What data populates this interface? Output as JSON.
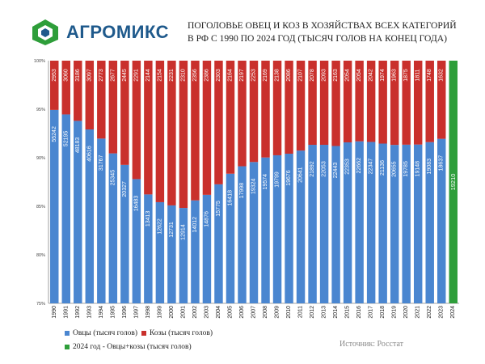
{
  "brand": {
    "logo_text": "АГРОМИКС"
  },
  "title_lines": [
    "ПОГОЛОВЬЕ ОВЕЦ И КОЗ В ХОЗЯЙСТВАХ ВСЕХ КАТЕГОРИЙ",
    "В РФ С 1990 ПО 2024 ГОД (ТЫСЯЧ ГОЛОВ НА КОНЕЦ ГОДА)"
  ],
  "legend": {
    "sheep": "Овцы (тысяч голов)",
    "goats": "Козы (тысяч голов)",
    "total": "2024 год  - Овцы+козы (тысяч голов)"
  },
  "source": "Источник: Росстат",
  "colors": {
    "sheep": "#4a86d0",
    "goats": "#c9302c",
    "total": "#2e9e3a",
    "logo_blue": "#1f5a8c",
    "logo_green": "#2e9e3a"
  },
  "chart_data": {
    "type": "bar",
    "stacked": "percent",
    "categories": [
      "1990",
      "1991",
      "1992",
      "1993",
      "1994",
      "1995",
      "1996",
      "1997",
      "1998",
      "1999",
      "2000",
      "2001",
      "2002",
      "2003",
      "2004",
      "2005",
      "2006",
      "2007",
      "2008",
      "2009",
      "2010",
      "2011",
      "2012",
      "2013",
      "2014",
      "2015",
      "2016",
      "2017",
      "2018",
      "2019",
      "2020",
      "2021",
      "2022",
      "2023",
      "2024"
    ],
    "series": [
      {
        "name": "Овцы (тысяч голов)",
        "values": [
          55242,
          52195,
          48183,
          40616,
          31767,
          25345,
          20327,
          16483,
          13413,
          12622,
          12731,
          12914,
          14012,
          14876,
          15775,
          16418,
          17998,
          19324,
          19574,
          19799,
          19676,
          20641,
          21892,
          22053,
          22443,
          22353,
          22662,
          22347,
          21136,
          20655,
          19785,
          19148,
          19083,
          18637,
          null
        ]
      },
      {
        "name": "Козы (тысяч голов)",
        "values": [
          2953,
          3060,
          3186,
          3097,
          2773,
          2677,
          2445,
          2291,
          2144,
          2154,
          2231,
          2310,
          2356,
          2386,
          2303,
          2164,
          2197,
          2253,
          2169,
          2138,
          2086,
          2107,
          2078,
          2093,
          2163,
          2054,
          2054,
          2042,
          1974,
          1963,
          1875,
          1811,
          1748,
          1632,
          null
        ]
      },
      {
        "name": "2024 год  - Овцы+козы (тысяч голов)",
        "values": [
          null,
          null,
          null,
          null,
          null,
          null,
          null,
          null,
          null,
          null,
          null,
          null,
          null,
          null,
          null,
          null,
          null,
          null,
          null,
          null,
          null,
          null,
          null,
          null,
          null,
          null,
          null,
          null,
          null,
          null,
          null,
          null,
          null,
          null,
          19210
        ]
      }
    ],
    "y_axis": {
      "min": 75,
      "max": 100,
      "ticks": [
        "75%",
        "80%",
        "85%",
        "90%",
        "95%",
        "100%"
      ],
      "tick_values": [
        75,
        80,
        85,
        90,
        95,
        100
      ]
    },
    "grid": false,
    "legend_position": "bottom-left"
  }
}
